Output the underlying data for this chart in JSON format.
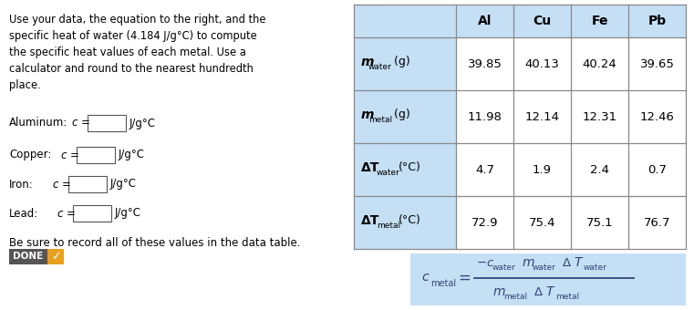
{
  "metals": [
    "Al",
    "Cu",
    "Fe",
    "Pb"
  ],
  "table_data": [
    [
      "39.85",
      "40.13",
      "40.24",
      "39.65"
    ],
    [
      "11.98",
      "12.14",
      "12.31",
      "12.46"
    ],
    [
      "4.7",
      "1.9",
      "2.4",
      "0.7"
    ],
    [
      "72.9",
      "75.4",
      "75.1",
      "76.7"
    ]
  ],
  "bottom_text": "Be sure to record all of these values in the data table.",
  "header_bg": "#c5dff5",
  "row_label_bg": "#c5dff5",
  "cell_bg": "#ffffff",
  "done_bg_left": "#555555",
  "done_bg_right": "#e8a020",
  "formula_bg": "#c5dff5",
  "bg_color": "#ffffff",
  "text_color": "#222222",
  "table_line_color": "#888888"
}
